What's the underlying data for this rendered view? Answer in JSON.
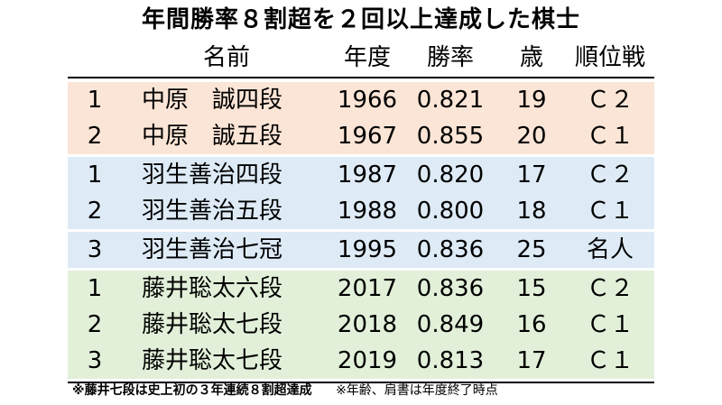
{
  "title": "年間勝率８割超を２回以上達成した棋士",
  "header": {
    "idx": "",
    "name": "名前",
    "year": "年度",
    "rate": "勝率",
    "age": "歳",
    "rank": "順位戦"
  },
  "groups": [
    {
      "color": "#fbe5d6",
      "rows": [
        {
          "idx": "1",
          "name": "中原　誠四段",
          "year": "1966",
          "rate": "0.821",
          "age": "19",
          "rank": "Ｃ２"
        },
        {
          "idx": "2",
          "name": "中原　誠五段",
          "year": "1967",
          "rate": "0.855",
          "age": "20",
          "rank": "Ｃ１"
        }
      ]
    },
    {
      "color": "#deebf7",
      "rows": [
        {
          "idx": "1",
          "name": "羽生善治四段",
          "year": "1987",
          "rate": "0.820",
          "age": "17",
          "rank": "Ｃ２"
        },
        {
          "idx": "2",
          "name": "羽生善治五段",
          "year": "1988",
          "rate": "0.800",
          "age": "18",
          "rank": "Ｃ１"
        }
      ]
    },
    {
      "color": "#deebf7",
      "rows": [
        {
          "idx": "3",
          "name": "羽生善治七冠",
          "year": "1995",
          "rate": "0.836",
          "age": "25",
          "rank": "名人"
        }
      ]
    },
    {
      "color": "#e2f0d9",
      "rows": [
        {
          "idx": "1",
          "name": "藤井聡太六段",
          "year": "2017",
          "rate": "0.836",
          "age": "15",
          "rank": "Ｃ２"
        },
        {
          "idx": "2",
          "name": "藤井聡太七段",
          "year": "2018",
          "rate": "0.849",
          "age": "16",
          "rank": "Ｃ１"
        },
        {
          "idx": "3",
          "name": "藤井聡太七段",
          "year": "2019",
          "rate": "0.813",
          "age": "17",
          "rank": "Ｃ１"
        }
      ]
    }
  ],
  "footer": {
    "note_a": "※藤井七段は史上初の３年連続８割超達成",
    "note_b": "※年齢、肩書は年度終了時点"
  }
}
